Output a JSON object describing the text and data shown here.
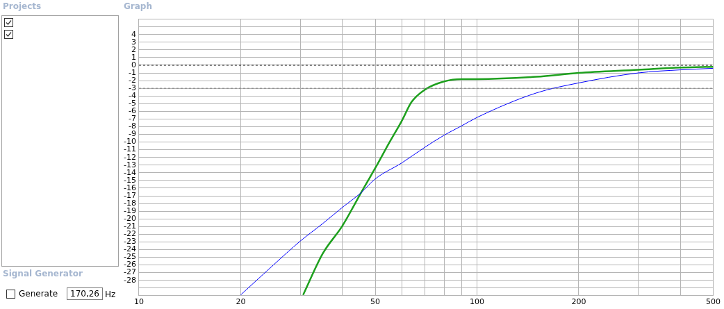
{
  "chart_data": {
    "type": "line",
    "annotations": [
      "Projects",
      "Graph",
      "Signal Generator",
      "Generate",
      "170,26",
      "Hz"
    ],
    "series": [
      {
        "color": "#0000ff",
        "x": [
          20,
          25,
          30,
          35,
          40,
          45.4,
          50,
          60,
          70,
          80,
          90,
          100,
          150,
          200,
          300,
          400,
          500
        ],
        "values": [
          -29.9,
          -26.0,
          -22.9,
          -20.6,
          -18.5,
          -16.6,
          -14.8,
          -12.7,
          -10.7,
          -9.1,
          -7.9,
          -6.8,
          -3.6,
          -2.3,
          -1.0,
          -0.6,
          -0.4
        ]
      },
      {
        "color": "#1ea01e",
        "x": [
          30.6,
          35,
          40,
          45.4,
          50,
          55,
          60,
          64,
          70,
          80,
          90,
          100,
          150,
          200,
          300,
          400,
          500
        ],
        "values": [
          -29.9,
          -24.5,
          -20.9,
          -16.6,
          -13.4,
          -10.1,
          -7.2,
          -4.8,
          -3.2,
          -2.1,
          -1.8,
          -1.8,
          -1.5,
          -1.0,
          -0.6,
          -0.3,
          -0.2
        ]
      }
    ],
    "xlim": [
      10,
      500
    ],
    "xticks": [
      10,
      20,
      {
        "value": 30,
        "label": null
      },
      {
        "value": 40,
        "label": null
      },
      50,
      {
        "value": 60,
        "label": null
      },
      {
        "value": 70,
        "label": null
      },
      {
        "value": 80,
        "label": null
      },
      {
        "value": 90,
        "label": null
      },
      100,
      200,
      {
        "value": 300,
        "label": null
      },
      {
        "value": 400,
        "label": null
      },
      500
    ],
    "ylim": [
      -30,
      6
    ],
    "yticks": [
      {
        "value": 6,
        "label": null
      },
      {
        "value": 5,
        "label": null
      },
      4,
      3,
      2,
      1,
      0,
      -1,
      -2,
      -3,
      -4,
      -5,
      -6,
      -7,
      -8,
      -9,
      -10,
      -11,
      -12,
      -13,
      -14,
      -15,
      -16,
      -17,
      -18,
      -19,
      -20,
      -21,
      -22,
      -23,
      -24,
      -25,
      -26,
      -27,
      -28,
      {
        "value": -29,
        "label": null
      }
    ],
    "ref_lines": [
      {
        "axis": "y",
        "value": 0,
        "color": "#000000",
        "line_style": "dashed"
      },
      {
        "axis": "y",
        "value": -3,
        "color": "#808080",
        "line_style": "dashed"
      }
    ],
    "grid": true,
    "legend": false,
    "log": "x",
    "marker": "none",
    "line_style": "solid"
  }
}
